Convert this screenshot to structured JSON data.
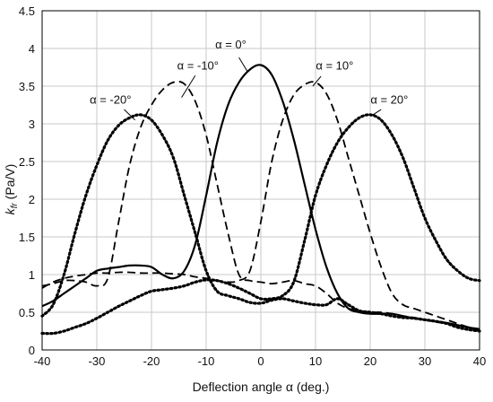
{
  "chart_data": {
    "type": "line",
    "title": "",
    "xlabel": "Deflection angle α (deg.)",
    "ylabel_main": "k",
    "ylabel_sub": "fr",
    "ylabel_unit": "(Pa/V)",
    "xlim": [
      -40,
      40
    ],
    "ylim": [
      0,
      4.5
    ],
    "x_ticks": [
      -40,
      -30,
      -20,
      -10,
      0,
      10,
      20,
      30,
      40
    ],
    "y_ticks": [
      0,
      0.5,
      1,
      1.5,
      2,
      2.5,
      3,
      3.5,
      4,
      4.5
    ],
    "x_tick_labels": [
      "-40",
      "-30",
      "-20",
      "-10",
      "0",
      "10",
      "20",
      "30",
      "40"
    ],
    "y_tick_labels": [
      "0",
      "0.5",
      "1",
      "1.5",
      "2",
      "2.5",
      "3",
      "3.5",
      "4",
      "4.5"
    ],
    "grid": true,
    "series": [
      {
        "label": "α = -20°",
        "style": "dotted",
        "label_pos": [
          -27.5,
          3.27
        ],
        "pointer": [
          [
            -25,
            3.19
          ],
          [
            -23,
            3.05
          ]
        ],
        "x": [
          -40,
          -38,
          -36,
          -34,
          -32,
          -30,
          -28,
          -26,
          -24,
          -22,
          -20,
          -18,
          -16,
          -14,
          -12,
          -10,
          -8,
          -6,
          -4,
          -2,
          0,
          2,
          4,
          6,
          8,
          10,
          12,
          14,
          16,
          18,
          20,
          22,
          24,
          26,
          28,
          30,
          32,
          34,
          36,
          38,
          40
        ],
        "y": [
          0.45,
          0.6,
          1.0,
          1.55,
          2.05,
          2.45,
          2.78,
          2.98,
          3.08,
          3.12,
          3.05,
          2.85,
          2.55,
          2.05,
          1.55,
          1.05,
          0.78,
          0.72,
          0.68,
          0.63,
          0.62,
          0.66,
          0.68,
          0.65,
          0.62,
          0.6,
          0.6,
          0.68,
          0.6,
          0.52,
          0.5,
          0.48,
          0.45,
          0.43,
          0.42,
          0.4,
          0.38,
          0.35,
          0.3,
          0.27,
          0.25
        ]
      },
      {
        "label": "α = -10°",
        "style": "dashed",
        "label_pos": [
          -11.5,
          3.72
        ],
        "pointer": [
          [
            -12,
            3.64
          ],
          [
            -14.5,
            3.35
          ]
        ],
        "x": [
          -40,
          -38,
          -36,
          -34,
          -32,
          -30,
          -28,
          -26,
          -24,
          -22,
          -20,
          -18,
          -16,
          -14,
          -12,
          -10,
          -8,
          -6,
          -4,
          -2,
          0,
          2,
          4,
          6,
          8,
          10,
          12,
          14,
          16,
          18,
          20,
          22,
          24,
          26,
          28,
          30,
          32,
          34,
          36,
          38,
          40
        ],
        "y": [
          0.85,
          0.88,
          0.92,
          0.92,
          0.9,
          0.85,
          0.95,
          1.7,
          2.45,
          2.95,
          3.25,
          3.45,
          3.55,
          3.53,
          3.3,
          2.85,
          2.2,
          1.55,
          1.0,
          0.92,
          0.9,
          0.88,
          0.9,
          0.92,
          0.88,
          0.85,
          0.75,
          0.62,
          0.55,
          0.52,
          0.5,
          0.5,
          0.48,
          0.45,
          0.43,
          0.4,
          0.37,
          0.35,
          0.32,
          0.3,
          0.28
        ]
      },
      {
        "label": "α = 0°",
        "style": "solid",
        "label_pos": [
          -5.5,
          4.0
        ],
        "pointer": [
          [
            -4,
            3.88
          ],
          [
            -2.5,
            3.7
          ]
        ],
        "x": [
          -40,
          -38,
          -36,
          -34,
          -32,
          -30,
          -28,
          -26,
          -24,
          -22,
          -20,
          -18,
          -16,
          -14,
          -12,
          -10,
          -8,
          -6,
          -4,
          -2,
          0,
          2,
          4,
          6,
          8,
          10,
          12,
          14,
          16,
          18,
          20,
          22,
          24,
          26,
          28,
          30,
          32,
          34,
          36,
          38,
          40
        ],
        "y": [
          0.58,
          0.65,
          0.75,
          0.85,
          0.95,
          1.05,
          1.08,
          1.1,
          1.12,
          1.12,
          1.1,
          1.0,
          0.95,
          1.05,
          1.4,
          2.05,
          2.75,
          3.25,
          3.55,
          3.72,
          3.78,
          3.65,
          3.3,
          2.8,
          2.2,
          1.6,
          1.1,
          0.75,
          0.55,
          0.5,
          0.48,
          0.48,
          0.48,
          0.45,
          0.42,
          0.4,
          0.38,
          0.36,
          0.33,
          0.3,
          0.27
        ]
      },
      {
        "label": "α = 10°",
        "style": "dashed",
        "label_pos": [
          13.5,
          3.72
        ],
        "pointer": [
          [
            11,
            3.63
          ],
          [
            9.5,
            3.5
          ]
        ],
        "x": [
          -40,
          -38,
          -36,
          -34,
          -32,
          -30,
          -28,
          -26,
          -24,
          -22,
          -20,
          -18,
          -16,
          -14,
          -12,
          -10,
          -8,
          -6,
          -4,
          -2,
          0,
          2,
          4,
          6,
          8,
          10,
          12,
          14,
          16,
          18,
          20,
          22,
          24,
          26,
          28,
          30,
          32,
          34,
          36,
          38,
          40
        ],
        "y": [
          0.82,
          0.9,
          0.95,
          0.98,
          1.0,
          1.02,
          1.02,
          1.03,
          1.03,
          1.02,
          1.02,
          1.02,
          1.01,
          1.0,
          0.97,
          0.95,
          0.92,
          0.9,
          0.92,
          1.05,
          1.7,
          2.5,
          3.05,
          3.38,
          3.52,
          3.55,
          3.4,
          3.05,
          2.55,
          2.05,
          1.55,
          1.1,
          0.75,
          0.6,
          0.55,
          0.5,
          0.45,
          0.4,
          0.35,
          0.3,
          0.25
        ]
      },
      {
        "label": "α = 20°",
        "style": "dotted",
        "label_pos": [
          23.5,
          3.27
        ],
        "pointer": [
          [
            22,
            3.19
          ],
          [
            20.5,
            3.12
          ]
        ],
        "x": [
          -40,
          -38,
          -36,
          -34,
          -32,
          -30,
          -28,
          -26,
          -24,
          -22,
          -20,
          -18,
          -16,
          -14,
          -12,
          -10,
          -8,
          -6,
          -4,
          -2,
          0,
          2,
          4,
          6,
          8,
          10,
          12,
          14,
          16,
          18,
          20,
          22,
          24,
          26,
          28,
          30,
          32,
          34,
          36,
          38,
          40
        ],
        "y": [
          0.22,
          0.22,
          0.25,
          0.3,
          0.35,
          0.42,
          0.5,
          0.58,
          0.65,
          0.72,
          0.78,
          0.8,
          0.82,
          0.85,
          0.9,
          0.93,
          0.92,
          0.88,
          0.82,
          0.75,
          0.68,
          0.68,
          0.72,
          0.9,
          1.45,
          2.05,
          2.45,
          2.75,
          2.95,
          3.08,
          3.12,
          3.05,
          2.85,
          2.55,
          2.15,
          1.75,
          1.45,
          1.2,
          1.05,
          0.95,
          0.92
        ]
      }
    ]
  }
}
